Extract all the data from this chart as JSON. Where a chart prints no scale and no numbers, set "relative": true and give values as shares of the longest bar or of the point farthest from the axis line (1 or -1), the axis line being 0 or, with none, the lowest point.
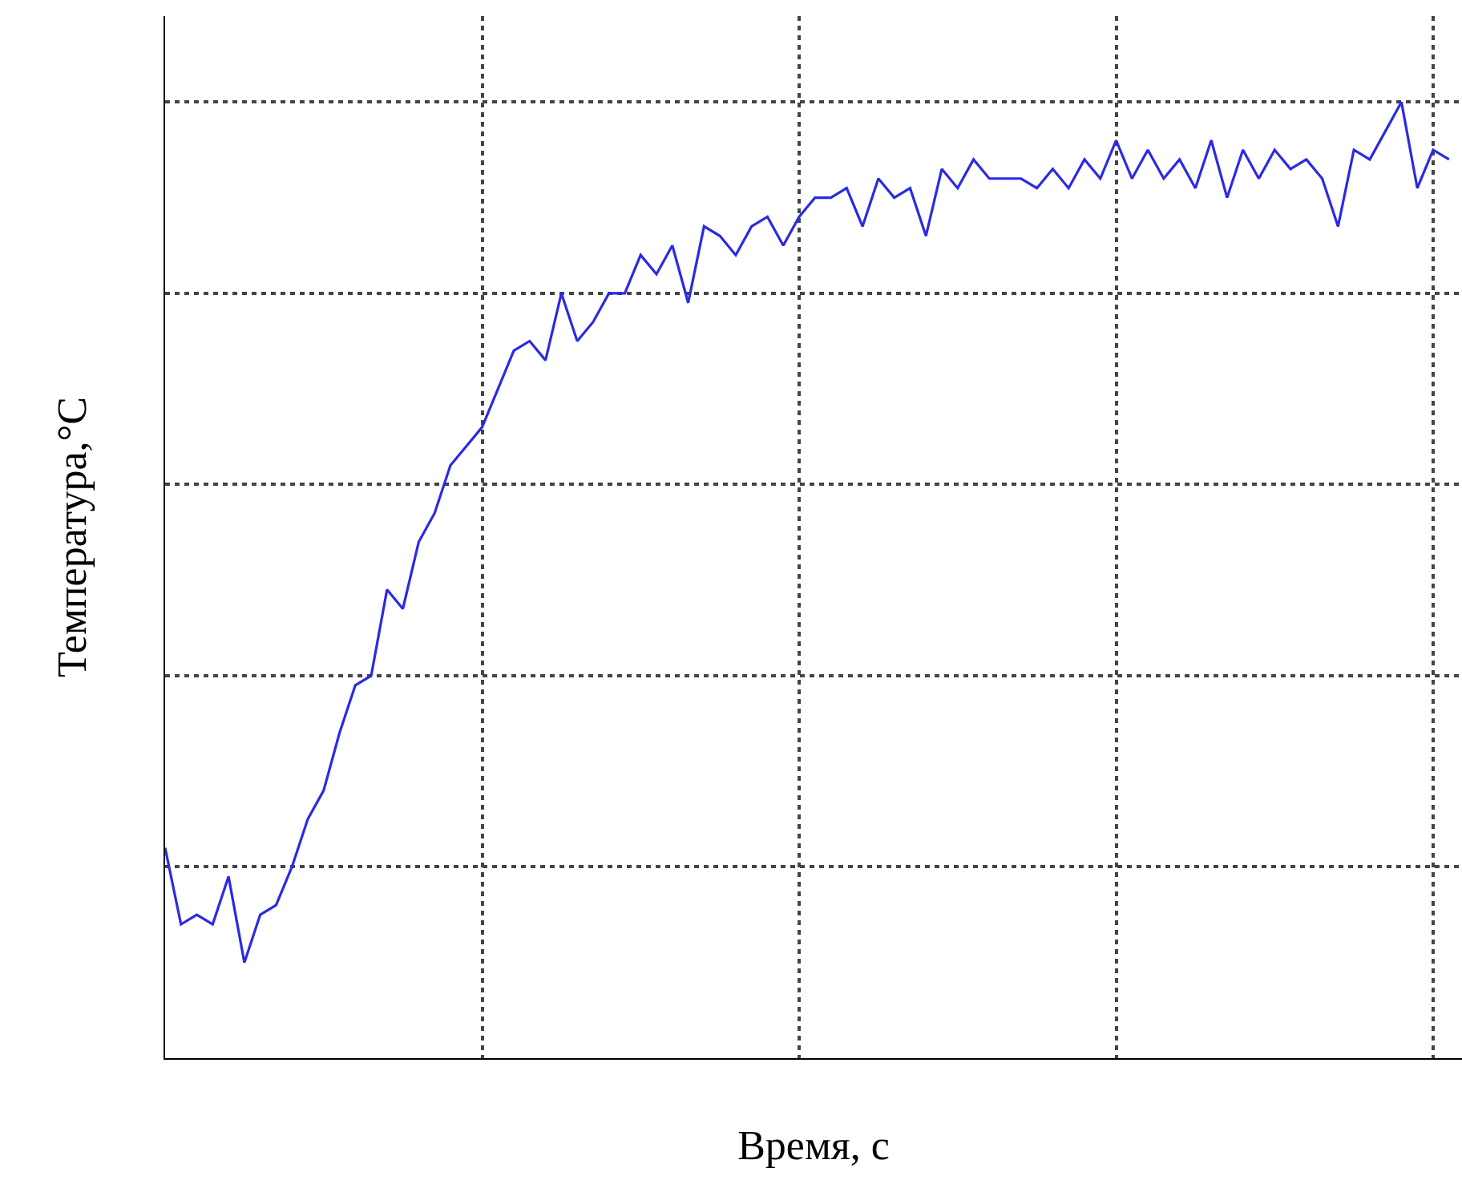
{
  "chart_data": {
    "type": "line",
    "relative": true,
    "xlabel": "Время, с",
    "ylabel": "Температура,°C",
    "grid": true,
    "line_style": "solid",
    "categories": [
      null,
      null,
      null,
      null,
      null,
      null,
      null,
      null,
      null,
      null,
      null,
      null,
      null,
      null,
      null,
      null,
      null,
      null,
      null,
      null,
      null,
      null,
      null,
      null,
      null,
      null,
      null,
      null,
      null,
      null,
      null,
      null,
      null,
      null,
      null,
      null,
      null,
      null,
      null,
      null,
      null,
      null,
      null,
      null,
      null,
      null,
      null,
      null,
      null,
      null,
      null,
      null,
      null,
      null,
      null,
      null,
      null,
      null,
      null,
      null,
      null,
      null,
      null,
      null,
      null,
      null,
      null,
      null,
      null,
      null,
      null,
      null,
      null,
      null,
      null,
      null,
      null,
      null,
      null,
      null,
      null,
      null
    ],
    "series": [
      {
        "color": "#2a2ae6",
        "values": [
          0.22,
          0.14,
          0.15,
          0.14,
          0.19,
          0.1,
          0.15,
          0.16,
          0.2,
          0.25,
          0.28,
          0.34,
          0.39,
          0.4,
          0.49,
          0.47,
          0.54,
          0.57,
          0.62,
          0.64,
          0.66,
          0.7,
          0.74,
          0.75,
          0.73,
          0.8,
          0.75,
          0.77,
          0.8,
          0.8,
          0.84,
          0.82,
          0.85,
          0.79,
          0.87,
          0.86,
          0.84,
          0.87,
          0.88,
          0.85,
          0.88,
          0.9,
          0.9,
          0.91,
          0.87,
          0.92,
          0.9,
          0.91,
          0.86,
          0.93,
          0.91,
          0.94,
          0.92,
          0.92,
          0.92,
          0.91,
          0.93,
          0.91,
          0.94,
          0.92,
          0.96,
          0.92,
          0.95,
          0.92,
          0.94,
          0.91,
          0.96,
          0.9,
          0.95,
          0.92,
          0.95,
          0.93,
          0.94,
          0.92,
          0.87,
          0.95,
          0.94,
          0.97,
          1.0,
          0.91,
          0.95,
          0.94
        ]
      }
    ]
  }
}
